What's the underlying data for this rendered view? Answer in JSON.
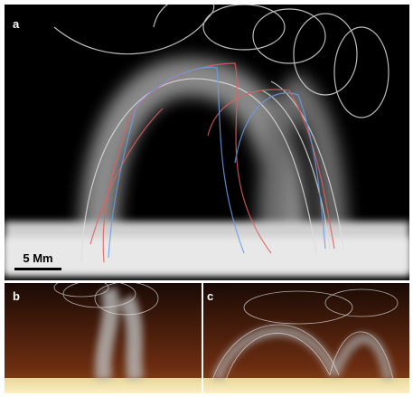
{
  "panels": [
    {
      "label": "a"
    },
    {
      "label": "b"
    },
    {
      "label": "c"
    }
  ],
  "scale_bar": {
    "label": "5 Mm"
  }
}
